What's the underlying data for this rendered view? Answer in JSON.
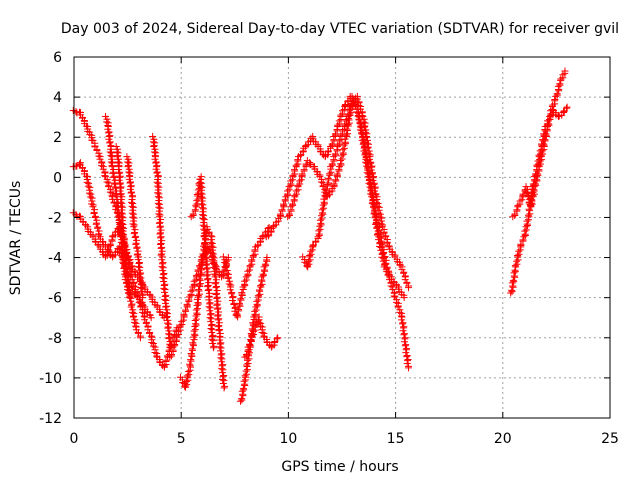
{
  "chart_data": {
    "type": "scatter",
    "title": "Day 003 of 2024, Sidereal Day-to-day VTEC variation (SDTVAR) for receiver gvil",
    "xlabel": "GPS time / hours",
    "ylabel": "SDTVAR / TECUs",
    "xlim": [
      0,
      25
    ],
    "ylim": [
      -12,
      6
    ],
    "xticks": [
      0,
      5,
      10,
      15,
      20,
      25
    ],
    "yticks": [
      -12,
      -10,
      -8,
      -6,
      -4,
      -2,
      0,
      2,
      4,
      6
    ],
    "grid": true,
    "marker": "+",
    "color": "#ff0000",
    "series": [
      {
        "x": [
          0.0,
          0.3,
          0.6,
          0.9,
          1.2,
          1.5,
          1.8,
          2.1,
          2.4,
          2.7,
          3.0,
          3.3,
          3.6,
          3.9,
          4.2,
          4.5,
          4.8
        ],
        "y": [
          3.3,
          3.2,
          2.5,
          1.8,
          1.0,
          0.0,
          -1.0,
          -2.0,
          -3.5,
          -5.0,
          -6.0,
          -7.0,
          -8.0,
          -9.0,
          -9.5,
          -8.5,
          -7.5
        ]
      },
      {
        "x": [
          0.0,
          0.3,
          0.6,
          0.9,
          1.2,
          1.5,
          1.8,
          2.1,
          2.4,
          2.7,
          3.0,
          3.3,
          3.6
        ],
        "y": [
          0.5,
          0.7,
          0.0,
          -1.5,
          -3.0,
          -3.5,
          -4.0,
          -3.5,
          -4.5,
          -5.5,
          -6.0,
          -6.5,
          -7.0
        ]
      },
      {
        "x": [
          0.0,
          0.3,
          0.6,
          0.9,
          1.2,
          1.5,
          1.8,
          2.1,
          2.4,
          2.7,
          3.0,
          3.3,
          3.6,
          3.9,
          4.2
        ],
        "y": [
          -1.8,
          -2.0,
          -2.5,
          -3.0,
          -3.5,
          -4.0,
          -3.0,
          -2.5,
          -3.5,
          -4.5,
          -5.0,
          -5.5,
          -6.0,
          -6.5,
          -7.0
        ]
      },
      {
        "x": [
          1.5,
          1.6,
          1.7,
          1.8,
          2.0,
          2.2,
          2.4,
          2.6
        ],
        "y": [
          3.0,
          2.5,
          1.5,
          0.5,
          -1.0,
          -3.0,
          -5.0,
          -6.0
        ]
      },
      {
        "x": [
          2.0,
          2.1,
          2.2,
          2.3,
          2.5,
          2.7,
          2.9,
          3.1
        ],
        "y": [
          1.5,
          0.5,
          -1.0,
          -3.0,
          -5.0,
          -6.5,
          -7.5,
          -8.0
        ]
      },
      {
        "x": [
          2.5,
          2.6,
          2.7,
          2.8,
          3.0,
          3.2
        ],
        "y": [
          1.0,
          0.0,
          -1.0,
          -2.5,
          -4.0,
          -6.0
        ]
      },
      {
        "x": [
          3.7,
          3.8,
          3.9,
          4.0,
          4.1,
          4.3,
          4.5
        ],
        "y": [
          2.0,
          1.0,
          0.0,
          -2.0,
          -4.0,
          -6.5,
          -8.5
        ]
      },
      {
        "x": [
          4.5,
          4.8,
          5.1,
          5.4,
          5.7,
          6.0,
          6.3,
          6.6,
          6.9,
          7.2
        ],
        "y": [
          -9.0,
          -8.0,
          -7.0,
          -6.0,
          -5.0,
          -4.0,
          -3.5,
          -4.5,
          -5.0,
          -4.0
        ]
      },
      {
        "x": [
          5.0,
          5.2,
          5.4,
          5.6,
          5.8,
          6.0,
          6.2,
          6.4,
          6.6,
          6.8,
          7.0
        ],
        "y": [
          -10.0,
          -10.5,
          -9.5,
          -8.0,
          -6.0,
          -4.0,
          -2.5,
          -3.0,
          -5.0,
          -8.0,
          -10.5
        ]
      },
      {
        "x": [
          5.5,
          5.7,
          5.9,
          6.1,
          6.3,
          6.5
        ],
        "y": [
          -2.0,
          -1.5,
          0.0,
          -3.0,
          -6.0,
          -8.5
        ]
      },
      {
        "x": [
          7.0,
          7.3,
          7.6,
          7.9,
          8.2,
          8.5,
          8.8,
          9.1
        ],
        "y": [
          -4.0,
          -5.5,
          -7.0,
          -5.5,
          -4.5,
          -3.5,
          -3.0,
          -2.5
        ]
      },
      {
        "x": [
          7.8,
          8.0,
          8.2,
          8.4,
          8.6,
          8.8,
          9.0
        ],
        "y": [
          -11.2,
          -10.0,
          -8.5,
          -7.0,
          -6.0,
          -5.0,
          -4.0
        ]
      },
      {
        "x": [
          8.0,
          8.3,
          8.6,
          8.9,
          9.2,
          9.5
        ],
        "y": [
          -9.0,
          -8.0,
          -7.0,
          -8.0,
          -8.5,
          -8.0
        ]
      },
      {
        "x": [
          9.0,
          9.3,
          9.6,
          9.9,
          10.2,
          10.5,
          10.8,
          11.1,
          11.4,
          11.7,
          12.0,
          12.3,
          12.6,
          12.9,
          13.2,
          13.5,
          13.8,
          14.1,
          14.4,
          14.7,
          15.0,
          15.3,
          15.6
        ],
        "y": [
          -3.0,
          -2.5,
          -2.0,
          -1.0,
          0.0,
          1.0,
          1.5,
          2.0,
          1.5,
          1.0,
          1.5,
          2.5,
          3.5,
          4.0,
          3.5,
          2.0,
          0.0,
          -2.0,
          -3.5,
          -5.0,
          -6.0,
          -7.0,
          -9.5
        ]
      },
      {
        "x": [
          10.0,
          10.3,
          10.6,
          10.9,
          11.2,
          11.5,
          11.8,
          12.1,
          12.4,
          12.7,
          13.0,
          13.3,
          13.6,
          13.9,
          14.2,
          14.5,
          14.8,
          15.1,
          15.4
        ],
        "y": [
          -2.0,
          -1.0,
          0.0,
          0.8,
          0.5,
          0.0,
          -1.0,
          -0.5,
          0.5,
          2.0,
          4.0,
          3.0,
          1.0,
          -1.0,
          -3.0,
          -4.5,
          -5.0,
          -5.5,
          -6.0
        ]
      },
      {
        "x": [
          10.7,
          10.9,
          11.1,
          11.4,
          11.7,
          12.0,
          12.3,
          12.6,
          12.9,
          13.2,
          13.5,
          13.8,
          14.1,
          14.4,
          14.7,
          15.0,
          15.3,
          15.6
        ],
        "y": [
          -4.0,
          -4.5,
          -3.5,
          -3.0,
          -1.0,
          0.5,
          1.5,
          2.5,
          3.5,
          4.0,
          3.0,
          1.0,
          -1.0,
          -2.5,
          -3.5,
          -4.0,
          -4.5,
          -5.5
        ]
      },
      {
        "x": [
          20.4,
          20.6,
          20.8,
          21.0,
          21.2,
          21.4,
          21.6,
          21.8,
          22.0,
          22.2,
          22.4,
          22.6,
          22.8,
          23.0
        ],
        "y": [
          -5.8,
          -4.5,
          -3.5,
          -3.0,
          -2.0,
          -0.5,
          0.5,
          1.5,
          2.5,
          3.0,
          3.3,
          3.0,
          3.2,
          3.5
        ]
      },
      {
        "x": [
          20.5,
          20.7,
          20.9,
          21.1,
          21.3,
          21.5,
          21.7,
          21.9,
          22.1,
          22.3,
          22.5,
          22.7,
          22.9
        ],
        "y": [
          -2.0,
          -1.5,
          -1.0,
          -0.5,
          -1.5,
          -0.5,
          0.5,
          1.5,
          2.5,
          3.5,
          4.0,
          4.8,
          5.3
        ]
      }
    ]
  }
}
